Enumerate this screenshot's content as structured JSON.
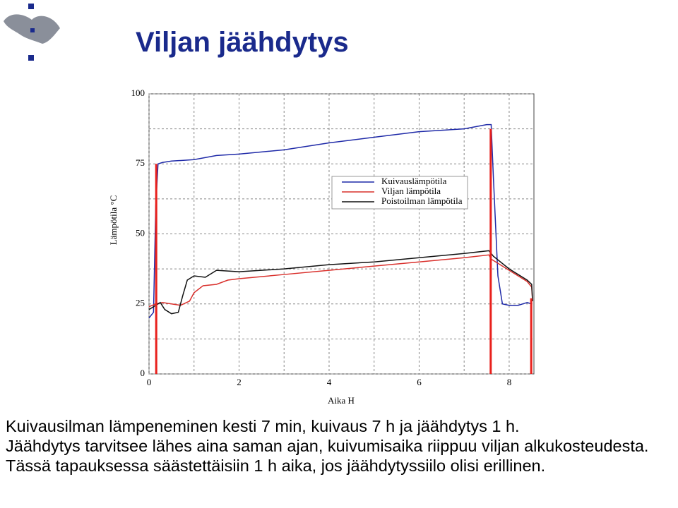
{
  "title": "Viljan jäähdytys",
  "chart_data": {
    "type": "line",
    "ylabel": "Lämpötila °C",
    "xlabel": "Aika H",
    "xlim": [
      0,
      8.55
    ],
    "ylim": [
      0,
      100
    ],
    "xticks": [
      0,
      2,
      4,
      6,
      8
    ],
    "yticks": [
      0,
      25,
      50,
      75,
      100
    ],
    "minor_xticks": [
      1,
      3,
      5,
      7
    ],
    "minor_yticks": [
      12.5,
      37.5,
      62.5,
      87.5
    ],
    "grid": true,
    "legend": "upper right",
    "series": [
      {
        "name": "Kuivauslämpötila",
        "color": "#1f2aa8",
        "x": [
          0,
          0.1,
          0.15,
          0.2,
          0.3,
          0.5,
          1,
          1.5,
          2,
          3,
          4,
          5,
          6,
          7,
          7.5,
          7.6,
          7.65,
          7.75,
          7.85,
          8,
          8.2,
          8.4,
          8.5
        ],
        "values": [
          20,
          22,
          60,
          75,
          75.5,
          76,
          76.5,
          78,
          78.5,
          80,
          82.5,
          84.5,
          86.5,
          87.5,
          89,
          89,
          70,
          35,
          25,
          24.5,
          24.5,
          25.5,
          25
        ]
      },
      {
        "name": "Viljan lämpötila",
        "color": "#d9302c",
        "x": [
          0,
          0.15,
          0.3,
          0.5,
          0.7,
          0.9,
          1,
          1.2,
          1.5,
          1.75,
          2,
          3,
          4,
          5,
          6,
          7,
          7.55,
          7.6,
          8,
          8.4,
          8.5,
          8.52
        ],
        "values": [
          24,
          25,
          25.5,
          25,
          24.5,
          26,
          29,
          31.5,
          32,
          33.5,
          34,
          35.5,
          37,
          38.5,
          40,
          41.5,
          42.5,
          41,
          37,
          33,
          31,
          26
        ]
      },
      {
        "name": "Poistoilman lämpötila",
        "color": "#111111",
        "x": [
          0,
          0.15,
          0.25,
          0.35,
          0.5,
          0.65,
          0.75,
          0.85,
          1,
          1.25,
          1.5,
          2,
          3,
          4,
          5,
          6,
          7,
          7.55,
          7.65,
          8,
          8.4,
          8.5,
          8.52
        ],
        "values": [
          23,
          24.5,
          25.5,
          23,
          21.5,
          22,
          28,
          33.5,
          35,
          34.5,
          37,
          36.5,
          37.5,
          39,
          40,
          41.5,
          43,
          44,
          42,
          37.5,
          33.5,
          32,
          26
        ]
      }
    ],
    "markers": {
      "color": "#e8201c",
      "x": [
        0.16,
        7.59,
        8.49
      ],
      "values": [
        75,
        87.5,
        27
      ]
    }
  },
  "text": [
    "Kuivausilman lämpeneminen kesti 7 min, kuivaus 7 h ja jäähdytys 1 h.",
    "Jäähdytys tarvitsee lähes aina saman ajan, kuivumisaika riippuu viljan alkukosteudesta. Tässä tapauksessa säästettäisiin 1 h aika, jos jäähdytyssiilo olisi erillinen."
  ]
}
